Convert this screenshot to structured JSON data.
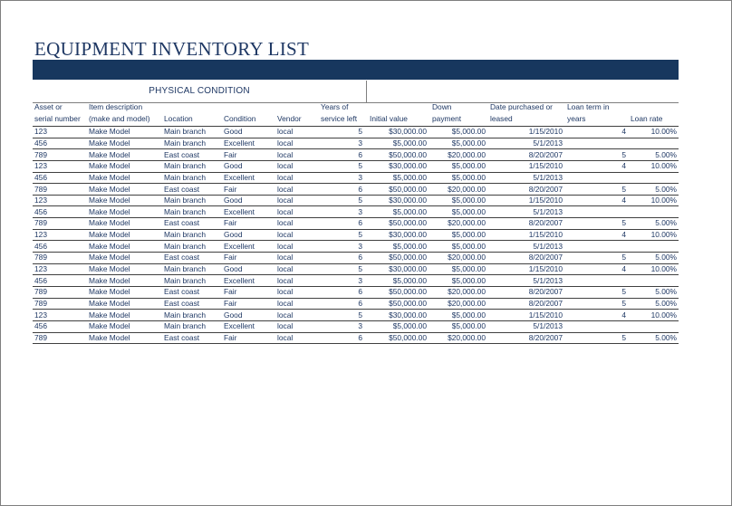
{
  "title": "EQUIPMENT INVENTORY LIST",
  "colors": {
    "banner": "#17375e",
    "text": "#1f3864"
  },
  "section_label": "PHYSICAL CONDITION",
  "headers": {
    "asset_l1": "Asset or",
    "asset_l2": "serial number",
    "item_l1": "Item description",
    "item_l2": "(make and model)",
    "location": "Location",
    "condition": "Condition",
    "vendor": "Vendor",
    "years_l1": "Years of",
    "years_l2": "service left",
    "initial": "Initial value",
    "down_l1": "Down",
    "down_l2": "payment",
    "date_l1": "Date purchased or",
    "date_l2": "leased",
    "term_l1": "Loan term in",
    "term_l2": "years",
    "rate": "Loan rate"
  },
  "rows": [
    {
      "asset": "123",
      "item": "Make Model",
      "location": "Main branch",
      "condition": "Good",
      "vendor": "local",
      "years": "5",
      "initial": "$30,000.00",
      "down": "$5,000.00",
      "date": "1/15/2010",
      "term": "4",
      "rate": "10.00%"
    },
    {
      "asset": "456",
      "item": "Make Model",
      "location": "Main branch",
      "condition": "Excellent",
      "vendor": "local",
      "years": "3",
      "initial": "$5,000.00",
      "down": "$5,000.00",
      "date": "5/1/2013",
      "term": "",
      "rate": ""
    },
    {
      "asset": "789",
      "item": "Make Model",
      "location": "East coast",
      "condition": "Fair",
      "vendor": "local",
      "years": "6",
      "initial": "$50,000.00",
      "down": "$20,000.00",
      "date": "8/20/2007",
      "term": "5",
      "rate": "5.00%"
    },
    {
      "asset": "123",
      "item": "Make Model",
      "location": "Main branch",
      "condition": "Good",
      "vendor": "local",
      "years": "5",
      "initial": "$30,000.00",
      "down": "$5,000.00",
      "date": "1/15/2010",
      "term": "4",
      "rate": "10.00%"
    },
    {
      "asset": "456",
      "item": "Make Model",
      "location": "Main branch",
      "condition": "Excellent",
      "vendor": "local",
      "years": "3",
      "initial": "$5,000.00",
      "down": "$5,000.00",
      "date": "5/1/2013",
      "term": "",
      "rate": ""
    },
    {
      "asset": "789",
      "item": "Make Model",
      "location": "East coast",
      "condition": "Fair",
      "vendor": "local",
      "years": "6",
      "initial": "$50,000.00",
      "down": "$20,000.00",
      "date": "8/20/2007",
      "term": "5",
      "rate": "5.00%"
    },
    {
      "asset": "123",
      "item": "Make Model",
      "location": "Main branch",
      "condition": "Good",
      "vendor": "local",
      "years": "5",
      "initial": "$30,000.00",
      "down": "$5,000.00",
      "date": "1/15/2010",
      "term": "4",
      "rate": "10.00%"
    },
    {
      "asset": "456",
      "item": "Make Model",
      "location": "Main branch",
      "condition": "Excellent",
      "vendor": "local",
      "years": "3",
      "initial": "$5,000.00",
      "down": "$5,000.00",
      "date": "5/1/2013",
      "term": "",
      "rate": ""
    },
    {
      "asset": "789",
      "item": "Make Model",
      "location": "East coast",
      "condition": "Fair",
      "vendor": "local",
      "years": "6",
      "initial": "$50,000.00",
      "down": "$20,000.00",
      "date": "8/20/2007",
      "term": "5",
      "rate": "5.00%"
    },
    {
      "asset": "123",
      "item": "Make Model",
      "location": "Main branch",
      "condition": "Good",
      "vendor": "local",
      "years": "5",
      "initial": "$30,000.00",
      "down": "$5,000.00",
      "date": "1/15/2010",
      "term": "4",
      "rate": "10.00%"
    },
    {
      "asset": "456",
      "item": "Make Model",
      "location": "Main branch",
      "condition": "Excellent",
      "vendor": "local",
      "years": "3",
      "initial": "$5,000.00",
      "down": "$5,000.00",
      "date": "5/1/2013",
      "term": "",
      "rate": ""
    },
    {
      "asset": "789",
      "item": "Make Model",
      "location": "East coast",
      "condition": "Fair",
      "vendor": "local",
      "years": "6",
      "initial": "$50,000.00",
      "down": "$20,000.00",
      "date": "8/20/2007",
      "term": "5",
      "rate": "5.00%"
    },
    {
      "asset": "123",
      "item": "Make Model",
      "location": "Main branch",
      "condition": "Good",
      "vendor": "local",
      "years": "5",
      "initial": "$30,000.00",
      "down": "$5,000.00",
      "date": "1/15/2010",
      "term": "4",
      "rate": "10.00%"
    },
    {
      "asset": "456",
      "item": "Make Model",
      "location": "Main branch",
      "condition": "Excellent",
      "vendor": "local",
      "years": "3",
      "initial": "$5,000.00",
      "down": "$5,000.00",
      "date": "5/1/2013",
      "term": "",
      "rate": ""
    },
    {
      "asset": "789",
      "item": "Make Model",
      "location": "East coast",
      "condition": "Fair",
      "vendor": "local",
      "years": "6",
      "initial": "$50,000.00",
      "down": "$20,000.00",
      "date": "8/20/2007",
      "term": "5",
      "rate": "5.00%"
    },
    {
      "asset": "789",
      "item": "Make Model",
      "location": "East coast",
      "condition": "Fair",
      "vendor": "local",
      "years": "6",
      "initial": "$50,000.00",
      "down": "$20,000.00",
      "date": "8/20/2007",
      "term": "5",
      "rate": "5.00%"
    },
    {
      "asset": "123",
      "item": "Make Model",
      "location": "Main branch",
      "condition": "Good",
      "vendor": "local",
      "years": "5",
      "initial": "$30,000.00",
      "down": "$5,000.00",
      "date": "1/15/2010",
      "term": "4",
      "rate": "10.00%"
    },
    {
      "asset": "456",
      "item": "Make Model",
      "location": "Main branch",
      "condition": "Excellent",
      "vendor": "local",
      "years": "3",
      "initial": "$5,000.00",
      "down": "$5,000.00",
      "date": "5/1/2013",
      "term": "",
      "rate": ""
    },
    {
      "asset": "789",
      "item": "Make Model",
      "location": "East coast",
      "condition": "Fair",
      "vendor": "local",
      "years": "6",
      "initial": "$50,000.00",
      "down": "$20,000.00",
      "date": "8/20/2007",
      "term": "5",
      "rate": "5.00%"
    }
  ]
}
